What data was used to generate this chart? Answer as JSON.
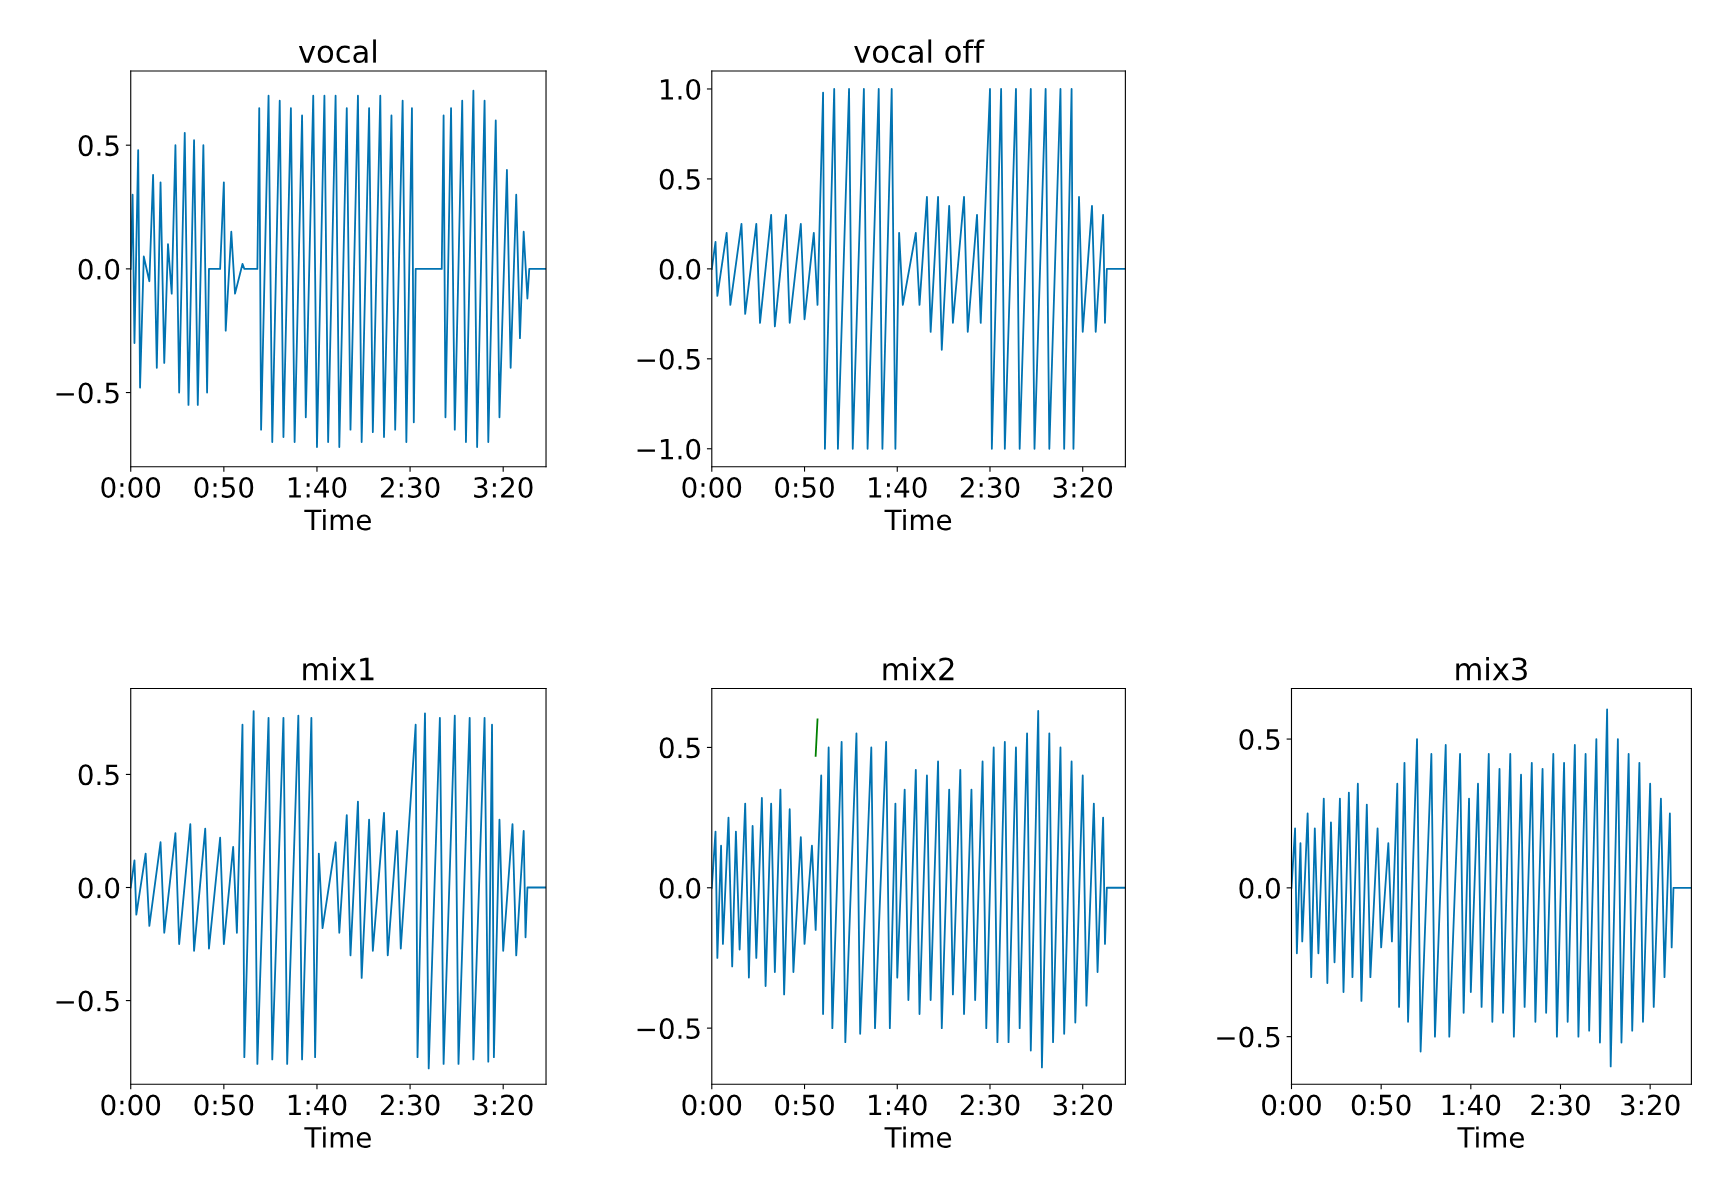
{
  "chart_data": [
    {
      "type": "line",
      "title": "vocal",
      "xlabel": "Time",
      "xlim": [
        0,
        223
      ],
      "ylim": [
        -0.8,
        0.8
      ],
      "xticks": [
        {
          "value": 0,
          "label": "0:00"
        },
        {
          "value": 50,
          "label": "0:50"
        },
        {
          "value": 100,
          "label": "1:40"
        },
        {
          "value": 150,
          "label": "2:30"
        },
        {
          "value": 200,
          "label": "3:20"
        }
      ],
      "yticks": [
        {
          "value": -0.5,
          "label": "−0.5"
        },
        {
          "value": 0,
          "label": "0.0"
        },
        {
          "value": 0.5,
          "label": "0.5"
        }
      ],
      "grid": false,
      "series": [
        {
          "color": "#0173b2",
          "x": [
            0,
            1,
            2,
            4,
            5,
            7,
            10,
            12,
            14,
            16,
            18,
            20,
            22,
            24,
            26,
            29,
            31,
            34,
            36,
            39,
            41,
            42,
            48,
            50,
            51,
            54,
            56,
            60,
            61,
            68,
            69,
            70,
            74,
            76,
            80,
            82,
            86,
            88,
            92,
            94,
            98,
            100,
            104,
            106,
            110,
            112,
            116,
            118,
            122,
            124,
            128,
            130,
            134,
            136,
            140,
            142,
            146,
            148,
            151,
            152,
            153,
            167,
            168,
            169,
            172,
            174,
            178,
            180,
            184,
            186,
            190,
            192,
            196,
            198,
            202,
            204,
            207,
            209,
            211,
            213,
            214,
            223
          ],
          "values": [
            0,
            0.3,
            -0.3,
            0.48,
            -0.48,
            0.05,
            -0.05,
            0.38,
            -0.4,
            0.35,
            -0.38,
            0.1,
            -0.1,
            0.5,
            -0.5,
            0.55,
            -0.55,
            0.52,
            -0.55,
            0.5,
            -0.5,
            0,
            0,
            0.35,
            -0.25,
            0.15,
            -0.1,
            0.02,
            0,
            0,
            0.65,
            -0.65,
            0.7,
            -0.7,
            0.68,
            -0.68,
            0.65,
            -0.7,
            0.62,
            -0.6,
            0.7,
            -0.72,
            0.7,
            -0.7,
            0.7,
            -0.72,
            0.65,
            -0.65,
            0.7,
            -0.7,
            0.65,
            -0.66,
            0.7,
            -0.68,
            0.62,
            -0.65,
            0.68,
            -0.7,
            0.65,
            -0.62,
            0,
            0,
            0.62,
            -0.6,
            0.65,
            -0.65,
            0.68,
            -0.7,
            0.72,
            -0.72,
            0.68,
            -0.7,
            0.6,
            -0.6,
            0.4,
            -0.4,
            0.3,
            -0.28,
            0.15,
            -0.12,
            0,
            0
          ]
        }
      ]
    },
    {
      "type": "line",
      "title": "vocal off",
      "xlabel": "Time",
      "xlim": [
        0,
        223
      ],
      "ylim": [
        -1.1,
        1.1
      ],
      "xticks": [
        {
          "value": 0,
          "label": "0:00"
        },
        {
          "value": 50,
          "label": "0:50"
        },
        {
          "value": 100,
          "label": "1:40"
        },
        {
          "value": 150,
          "label": "2:30"
        },
        {
          "value": 200,
          "label": "3:20"
        }
      ],
      "yticks": [
        {
          "value": -1.0,
          "label": "−1.0"
        },
        {
          "value": -0.5,
          "label": "−0.5"
        },
        {
          "value": 0,
          "label": "0.0"
        },
        {
          "value": 0.5,
          "label": "0.5"
        },
        {
          "value": 1.0,
          "label": "1.0"
        }
      ],
      "grid": false,
      "series": [
        {
          "color": "#0173b2",
          "x": [
            0,
            2,
            3,
            8,
            10,
            16,
            18,
            24,
            26,
            32,
            34,
            40,
            42,
            48,
            50,
            55,
            57,
            60,
            61,
            66,
            68,
            74,
            76,
            82,
            84,
            90,
            92,
            97,
            99,
            101,
            103,
            110,
            112,
            116,
            118,
            122,
            124,
            128,
            130,
            136,
            138,
            143,
            145,
            150,
            151,
            156,
            158,
            164,
            166,
            172,
            174,
            180,
            182,
            188,
            190,
            194,
            195,
            198,
            200,
            205,
            207,
            211,
            212,
            213,
            223
          ],
          "values": [
            0,
            0.15,
            -0.15,
            0.2,
            -0.2,
            0.25,
            -0.25,
            0.25,
            -0.3,
            0.3,
            -0.32,
            0.3,
            -0.3,
            0.25,
            -0.28,
            0.2,
            -0.2,
            0.98,
            -1.0,
            1.0,
            -1.0,
            1.0,
            -1.0,
            1.0,
            -1.0,
            1.0,
            -1.0,
            1.0,
            -1.0,
            0.2,
            -0.2,
            0.2,
            -0.2,
            0.4,
            -0.35,
            0.4,
            -0.45,
            0.35,
            -0.3,
            0.4,
            -0.35,
            0.3,
            -0.3,
            1.0,
            -1.0,
            1.0,
            -1.0,
            1.0,
            -1.0,
            1.0,
            -1.0,
            1.0,
            -1.0,
            1.0,
            -1.0,
            1.0,
            -1.0,
            0.4,
            -0.35,
            0.35,
            -0.35,
            0.3,
            -0.3,
            0,
            0
          ]
        }
      ]
    },
    {
      "type": "line",
      "title": "mix1",
      "xlabel": "Time",
      "xlim": [
        0,
        223
      ],
      "ylim": [
        -0.87,
        0.88
      ],
      "xticks": [
        {
          "value": 0,
          "label": "0:00"
        },
        {
          "value": 50,
          "label": "0:50"
        },
        {
          "value": 100,
          "label": "1:40"
        },
        {
          "value": 150,
          "label": "2:30"
        },
        {
          "value": 200,
          "label": "3:20"
        }
      ],
      "yticks": [
        {
          "value": -0.5,
          "label": "−0.5"
        },
        {
          "value": 0,
          "label": "0.0"
        },
        {
          "value": 0.5,
          "label": "0.5"
        }
      ],
      "grid": false,
      "series": [
        {
          "color": "#0173b2",
          "x": [
            0,
            2,
            3,
            8,
            10,
            16,
            18,
            24,
            26,
            32,
            34,
            40,
            42,
            48,
            50,
            55,
            57,
            60,
            61,
            66,
            68,
            74,
            76,
            82,
            84,
            90,
            92,
            97,
            99,
            101,
            103,
            110,
            112,
            116,
            118,
            122,
            124,
            128,
            130,
            136,
            138,
            143,
            145,
            153,
            154,
            158,
            160,
            166,
            168,
            174,
            176,
            182,
            184,
            190,
            192,
            194,
            195,
            198,
            200,
            205,
            207,
            211,
            212,
            213,
            223
          ],
          "values": [
            0,
            0.12,
            -0.12,
            0.15,
            -0.17,
            0.2,
            -0.2,
            0.24,
            -0.25,
            0.28,
            -0.28,
            0.26,
            -0.27,
            0.22,
            -0.25,
            0.18,
            -0.2,
            0.72,
            -0.75,
            0.78,
            -0.78,
            0.75,
            -0.76,
            0.75,
            -0.78,
            0.76,
            -0.76,
            0.75,
            -0.75,
            0.15,
            -0.18,
            0.2,
            -0.2,
            0.32,
            -0.3,
            0.38,
            -0.4,
            0.3,
            -0.28,
            0.33,
            -0.3,
            0.25,
            -0.27,
            0.72,
            -0.75,
            0.77,
            -0.8,
            0.75,
            -0.78,
            0.76,
            -0.78,
            0.75,
            -0.76,
            0.75,
            -0.77,
            0.72,
            -0.75,
            0.3,
            -0.28,
            0.28,
            -0.3,
            0.25,
            -0.22,
            0,
            0
          ]
        }
      ]
    },
    {
      "type": "line",
      "title": "mix2",
      "xlabel": "Time",
      "xlim": [
        0,
        223
      ],
      "ylim": [
        -0.7,
        0.71
      ],
      "xticks": [
        {
          "value": 0,
          "label": "0:00"
        },
        {
          "value": 50,
          "label": "0:50"
        },
        {
          "value": 100,
          "label": "1:40"
        },
        {
          "value": 150,
          "label": "2:30"
        },
        {
          "value": 200,
          "label": "3:20"
        }
      ],
      "yticks": [
        {
          "value": -0.5,
          "label": "−0.5"
        },
        {
          "value": 0,
          "label": "0.0"
        },
        {
          "value": 0.5,
          "label": "0.5"
        }
      ],
      "grid": false,
      "series": [
        {
          "color": "#0173b2",
          "x": [
            0,
            2,
            3,
            5,
            6,
            9,
            11,
            13,
            15,
            18,
            20,
            22,
            24,
            27,
            29,
            32,
            34,
            37,
            39,
            42,
            44,
            48,
            50,
            54,
            56,
            59,
            60,
            63,
            65,
            70,
            72,
            78,
            80,
            86,
            88,
            94,
            96,
            99,
            100,
            104,
            106,
            110,
            112,
            116,
            118,
            122,
            124,
            128,
            130,
            134,
            136,
            140,
            142,
            146,
            148,
            152,
            154,
            158,
            160,
            164,
            166,
            170,
            172,
            176,
            178,
            182,
            184,
            188,
            190,
            194,
            196,
            200,
            202,
            206,
            208,
            211,
            212,
            213,
            223
          ],
          "values": [
            0,
            0.2,
            -0.25,
            0.15,
            -0.2,
            0.25,
            -0.28,
            0.2,
            -0.22,
            0.3,
            -0.32,
            0.22,
            -0.25,
            0.32,
            -0.35,
            0.3,
            -0.3,
            0.35,
            -0.38,
            0.28,
            -0.3,
            0.18,
            -0.2,
            0.15,
            -0.15,
            0.4,
            -0.45,
            0.5,
            -0.5,
            0.52,
            -0.55,
            0.55,
            -0.52,
            0.5,
            -0.5,
            0.52,
            -0.5,
            0.3,
            -0.32,
            0.35,
            -0.4,
            0.42,
            -0.45,
            0.4,
            -0.4,
            0.45,
            -0.5,
            0.35,
            -0.38,
            0.42,
            -0.45,
            0.35,
            -0.4,
            0.45,
            -0.5,
            0.5,
            -0.55,
            0.52,
            -0.55,
            0.5,
            -0.5,
            0.55,
            -0.58,
            0.63,
            -0.64,
            0.55,
            -0.55,
            0.5,
            -0.52,
            0.45,
            -0.48,
            0.4,
            -0.42,
            0.3,
            -0.3,
            0.25,
            -0.2,
            0,
            0
          ]
        },
        {
          "color": "#008000",
          "x": [
            56,
            57
          ],
          "values": [
            0.47,
            0.6
          ]
        }
      ]
    },
    {
      "type": "line",
      "title": "mix3",
      "xlabel": "Time",
      "xlim": [
        0,
        223
      ],
      "ylim": [
        -0.66,
        0.67
      ],
      "xticks": [
        {
          "value": 0,
          "label": "0:00"
        },
        {
          "value": 50,
          "label": "0:50"
        },
        {
          "value": 100,
          "label": "1:40"
        },
        {
          "value": 150,
          "label": "2:30"
        },
        {
          "value": 200,
          "label": "3:20"
        }
      ],
      "yticks": [
        {
          "value": -0.5,
          "label": "−0.5"
        },
        {
          "value": 0,
          "label": "0.0"
        },
        {
          "value": 0.5,
          "label": "0.5"
        }
      ],
      "grid": false,
      "series": [
        {
          "color": "#0173b2",
          "x": [
            0,
            2,
            3,
            5,
            6,
            9,
            11,
            13,
            15,
            18,
            20,
            22,
            24,
            27,
            29,
            32,
            34,
            37,
            39,
            42,
            44,
            48,
            50,
            54,
            56,
            59,
            60,
            63,
            65,
            70,
            72,
            78,
            80,
            86,
            88,
            94,
            96,
            99,
            100,
            104,
            106,
            110,
            112,
            116,
            118,
            122,
            124,
            128,
            130,
            134,
            136,
            140,
            142,
            146,
            148,
            152,
            154,
            158,
            160,
            164,
            166,
            170,
            172,
            176,
            178,
            182,
            184,
            188,
            190,
            194,
            196,
            200,
            202,
            206,
            208,
            211,
            212,
            213,
            223
          ],
          "values": [
            0,
            0.2,
            -0.22,
            0.15,
            -0.18,
            0.25,
            -0.3,
            0.2,
            -0.22,
            0.3,
            -0.32,
            0.22,
            -0.25,
            0.3,
            -0.35,
            0.32,
            -0.3,
            0.35,
            -0.38,
            0.28,
            -0.3,
            0.2,
            -0.2,
            0.15,
            -0.18,
            0.35,
            -0.4,
            0.42,
            -0.45,
            0.5,
            -0.55,
            0.45,
            -0.5,
            0.48,
            -0.5,
            0.45,
            -0.42,
            0.3,
            -0.35,
            0.35,
            -0.4,
            0.45,
            -0.45,
            0.4,
            -0.42,
            0.45,
            -0.5,
            0.38,
            -0.4,
            0.42,
            -0.45,
            0.4,
            -0.42,
            0.45,
            -0.5,
            0.42,
            -0.45,
            0.48,
            -0.5,
            0.45,
            -0.48,
            0.5,
            -0.52,
            0.6,
            -0.6,
            0.5,
            -0.52,
            0.45,
            -0.48,
            0.42,
            -0.45,
            0.35,
            -0.4,
            0.3,
            -0.3,
            0.25,
            -0.2,
            0,
            0
          ]
        }
      ]
    }
  ]
}
